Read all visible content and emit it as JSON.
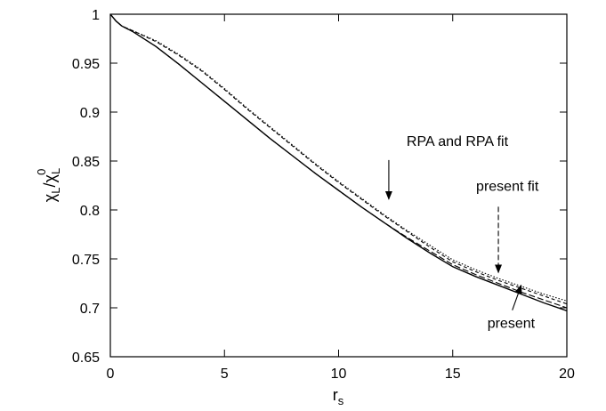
{
  "chart_data": {
    "type": "line",
    "title": "",
    "xlabel_main": "r",
    "xlabel_sub": "s",
    "ylabel_main": "χ",
    "ylabel_sub1": "L",
    "ylabel_sep": "/χ",
    "ylabel_sub2": "L",
    "ylabel_sup2": "0",
    "xlim": [
      0,
      20
    ],
    "ylim": [
      0.65,
      1.0
    ],
    "xticks": [
      0,
      5,
      10,
      15,
      20
    ],
    "xtick_labels": [
      "0",
      "5",
      "10",
      "15",
      "20"
    ],
    "yticks": [
      0.65,
      0.7,
      0.75,
      0.8,
      0.85,
      0.9,
      0.95,
      1.0
    ],
    "ytick_labels": [
      "0.65",
      "0.7",
      "0.75",
      "0.8",
      "0.85",
      "0.9",
      "0.95",
      "1"
    ],
    "grid": false,
    "series": [
      {
        "style": "solid",
        "x": [
          0,
          0.25,
          0.5,
          1,
          2,
          3,
          4,
          5,
          6,
          7,
          8,
          9,
          10,
          11,
          12,
          13,
          14,
          15,
          16,
          17,
          18,
          19,
          20
        ],
        "y": [
          1.0,
          0.993,
          0.988,
          0.982,
          0.967,
          0.949,
          0.93,
          0.911,
          0.892,
          0.873,
          0.855,
          0.837,
          0.82,
          0.803,
          0.787,
          0.771,
          0.756,
          0.742,
          0.732,
          0.723,
          0.714,
          0.705,
          0.697
        ]
      },
      {
        "style": "long-dash",
        "x": [
          0,
          0.25,
          0.5,
          1,
          2,
          3,
          4,
          5,
          6,
          7,
          8,
          9,
          10,
          11,
          12,
          13,
          14,
          15,
          16,
          17,
          18,
          19,
          20
        ],
        "y": [
          1.0,
          0.993,
          0.988,
          0.982,
          0.967,
          0.949,
          0.93,
          0.911,
          0.892,
          0.873,
          0.855,
          0.837,
          0.82,
          0.803,
          0.787,
          0.772,
          0.758,
          0.744,
          0.734,
          0.725,
          0.716,
          0.708,
          0.7
        ]
      },
      {
        "style": "short-dash",
        "x": [
          0,
          0.25,
          0.5,
          1,
          2,
          3,
          4,
          5,
          6,
          7,
          8,
          9,
          10,
          11,
          12,
          13,
          14,
          15,
          16,
          17,
          18,
          19,
          20
        ],
        "y": [
          1.0,
          0.993,
          0.988,
          0.983,
          0.972,
          0.958,
          0.942,
          0.923,
          0.903,
          0.884,
          0.865,
          0.846,
          0.828,
          0.811,
          0.794,
          0.778,
          0.762,
          0.747,
          0.737,
          0.728,
          0.72,
          0.712,
          0.704
        ]
      },
      {
        "style": "dotted",
        "x": [
          0,
          0.25,
          0.5,
          1,
          2,
          3,
          4,
          5,
          6,
          7,
          8,
          9,
          10,
          11,
          12,
          13,
          14,
          15,
          16,
          17,
          18,
          19,
          20
        ],
        "y": [
          1.0,
          0.993,
          0.988,
          0.983,
          0.973,
          0.959,
          0.943,
          0.924,
          0.904,
          0.885,
          0.866,
          0.847,
          0.829,
          0.812,
          0.795,
          0.779,
          0.764,
          0.749,
          0.739,
          0.73,
          0.722,
          0.714,
          0.707
        ]
      }
    ],
    "annotations": [
      {
        "text": "RPA and RPA fit",
        "at_x": 12.2,
        "at_y": 0.811
      },
      {
        "text": "present fit",
        "at_x": 17.0,
        "at_y": 0.736
      },
      {
        "text": "present",
        "at_x": 18.0,
        "at_y": 0.723
      }
    ]
  }
}
